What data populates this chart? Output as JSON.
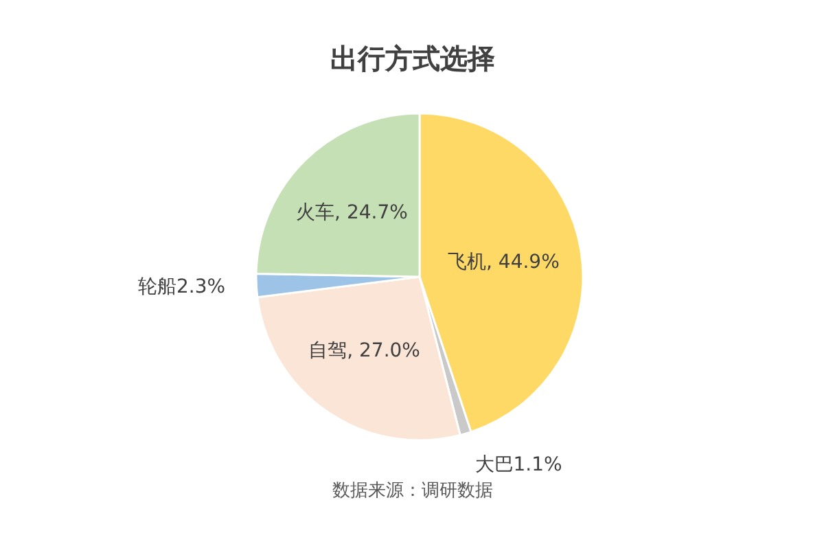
{
  "chart_data": {
    "type": "pie",
    "title": "出行方式选择",
    "categories": [
      "飞机",
      "大巴",
      "自驾",
      "轮船",
      "火车"
    ],
    "values": [
      44.9,
      1.1,
      27.0,
      2.3,
      24.7
    ],
    "colors": [
      "#ffd966",
      "#c9c9c9",
      "#fbe5d6",
      "#9dc3e6",
      "#c5e0b4"
    ],
    "value_labels": [
      ", 44.9%",
      "1.1%",
      ", 27.0%",
      "2.3%",
      ", 24.7%"
    ],
    "annotations": [
      "数据来源：调研数据"
    ]
  }
}
